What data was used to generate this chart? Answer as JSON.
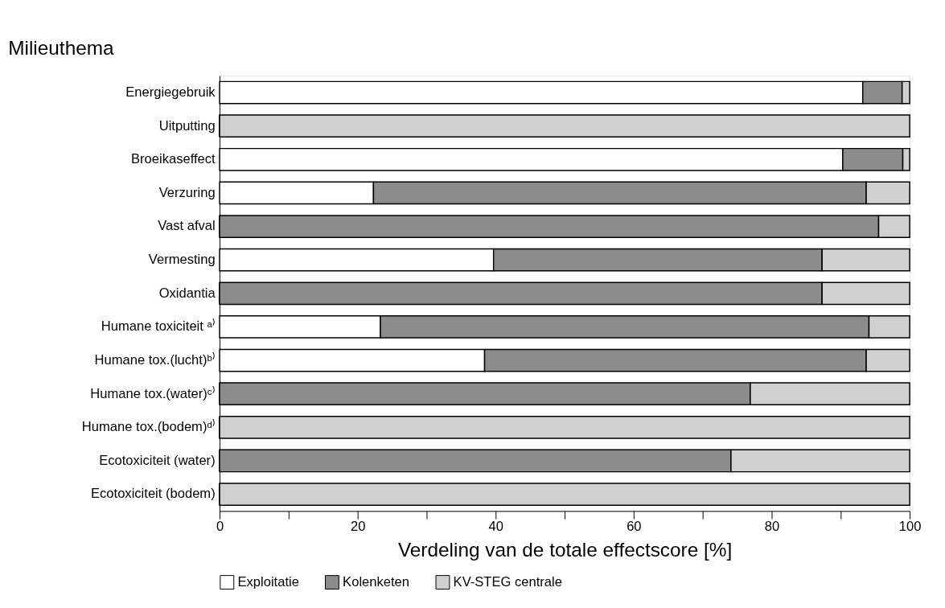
{
  "chart_data": {
    "type": "bar",
    "orientation": "horizontal",
    "stacked": true,
    "ylabel": "Milieuthema",
    "xlabel": "Verdeling van de totale effectscore [%]",
    "categories": [
      "Energiegebruik",
      "Uitputting",
      "Broeikaseffect",
      "Verzuring",
      "Vast afval",
      "Vermesting",
      "Oxidantia",
      "Humane toxiciteit ᵃ⁾",
      "Humane tox.(lucht)ᵇ⁾",
      "Humane tox.(water)ᶜ⁾",
      "Humane tox.(bodem)ᵈ⁾",
      "Ecotoxiciteit (water)",
      "Ecotoxiciteit (bodem)"
    ],
    "series": [
      {
        "name": "Exploitatie",
        "color": "#ffffff",
        "values": [
          93.2,
          0,
          90.3,
          22.3,
          0,
          39.7,
          0,
          23.3,
          38.4,
          0,
          0,
          0,
          0
        ]
      },
      {
        "name": "Kolenketen",
        "color": "#8c8c8c",
        "values": [
          5.7,
          0,
          8.7,
          71.4,
          95.5,
          47.6,
          87.3,
          70.8,
          55.3,
          76.9,
          0,
          74.1,
          0
        ]
      },
      {
        "name": "KV-STEG centrale",
        "color": "#d0d0d0",
        "values": [
          1.1,
          100,
          1.0,
          6.3,
          4.5,
          12.7,
          12.7,
          5.9,
          6.3,
          23.1,
          100,
          25.9,
          100
        ]
      }
    ],
    "xlim": [
      0,
      100
    ],
    "xticks": [
      0,
      {
        "value": 10,
        "label": null
      },
      20,
      {
        "value": 30,
        "label": null
      },
      40,
      {
        "value": 50,
        "label": null
      },
      60,
      {
        "value": 70,
        "label": null
      },
      80,
      {
        "value": 90,
        "label": null
      },
      100
    ],
    "grid": false,
    "legend": "bottom"
  }
}
